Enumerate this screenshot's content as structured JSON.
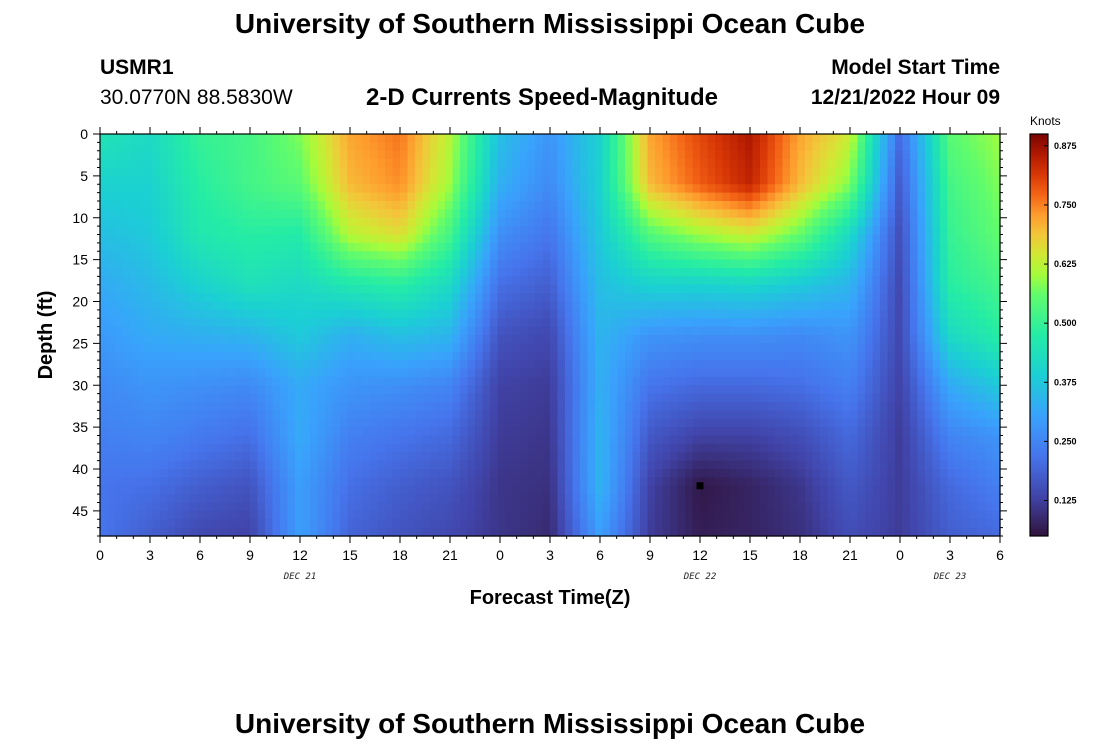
{
  "header": {
    "title": "University of Southern Mississippi Ocean Cube",
    "station_id": "USMR1",
    "coords": "30.0770N  88.5830W",
    "plot_title": "2-D Currents Speed-Magnitude",
    "model_start_label": "Model Start Time",
    "model_start_value": "12/21/2022 Hour 09"
  },
  "footer": {
    "title": "University of Southern Mississippi Ocean Cube"
  },
  "chart_data": {
    "type": "heatmap",
    "xlabel": "Forecast Time(Z)",
    "ylabel": "Depth (ft)",
    "x_tick_labels": [
      "0",
      "3",
      "6",
      "9",
      "12",
      "15",
      "18",
      "21",
      "0",
      "3",
      "6",
      "9",
      "12",
      "15",
      "18",
      "21",
      "0",
      "3",
      "6"
    ],
    "date_labels": [
      {
        "text": "DEC 21",
        "x_hour": 12
      },
      {
        "text": "DEC 22",
        "x_hour": 36
      },
      {
        "text": "DEC 23",
        "x_hour": 51
      }
    ],
    "xlim_hours": [
      0,
      54
    ],
    "y_ticks": [
      0,
      5,
      10,
      15,
      20,
      25,
      30,
      35,
      40,
      45
    ],
    "ylim_ft": [
      0,
      48
    ],
    "y_inverted": true,
    "colorbar": {
      "unit": "Knots",
      "ticks": [
        "0.125",
        "0.250",
        "0.375",
        "0.500",
        "0.625",
        "0.750",
        "0.875"
      ],
      "range": [
        0.05,
        0.9
      ],
      "colormap": "turbo"
    },
    "depths_ft": [
      0,
      6,
      12,
      18,
      24,
      30,
      36,
      42,
      48
    ],
    "time_hours": [
      0,
      3,
      6,
      9,
      12,
      15,
      18,
      21,
      24,
      27,
      30,
      33,
      36,
      39,
      42,
      45,
      48,
      51,
      54
    ],
    "speed_knots": [
      [
        0.45,
        0.42,
        0.5,
        0.52,
        0.58,
        0.72,
        0.76,
        0.62,
        0.36,
        0.28,
        0.4,
        0.72,
        0.8,
        0.86,
        0.72,
        0.64,
        0.2,
        0.55,
        0.6
      ],
      [
        0.4,
        0.4,
        0.48,
        0.52,
        0.55,
        0.7,
        0.74,
        0.6,
        0.33,
        0.26,
        0.4,
        0.7,
        0.78,
        0.84,
        0.7,
        0.58,
        0.17,
        0.52,
        0.58
      ],
      [
        0.36,
        0.38,
        0.46,
        0.48,
        0.47,
        0.62,
        0.66,
        0.52,
        0.27,
        0.22,
        0.38,
        0.54,
        0.6,
        0.64,
        0.56,
        0.42,
        0.15,
        0.5,
        0.56
      ],
      [
        0.32,
        0.35,
        0.4,
        0.44,
        0.42,
        0.46,
        0.48,
        0.42,
        0.21,
        0.18,
        0.36,
        0.4,
        0.4,
        0.41,
        0.38,
        0.34,
        0.14,
        0.48,
        0.52
      ],
      [
        0.29,
        0.32,
        0.33,
        0.34,
        0.38,
        0.33,
        0.36,
        0.34,
        0.16,
        0.14,
        0.34,
        0.28,
        0.27,
        0.27,
        0.26,
        0.28,
        0.14,
        0.42,
        0.48
      ],
      [
        0.26,
        0.28,
        0.27,
        0.26,
        0.32,
        0.28,
        0.27,
        0.25,
        0.13,
        0.12,
        0.33,
        0.22,
        0.2,
        0.2,
        0.21,
        0.24,
        0.13,
        0.32,
        0.38
      ],
      [
        0.24,
        0.25,
        0.23,
        0.21,
        0.32,
        0.24,
        0.22,
        0.2,
        0.12,
        0.11,
        0.34,
        0.17,
        0.13,
        0.13,
        0.15,
        0.2,
        0.12,
        0.25,
        0.28
      ],
      [
        0.22,
        0.21,
        0.18,
        0.16,
        0.3,
        0.21,
        0.18,
        0.16,
        0.11,
        0.1,
        0.34,
        0.13,
        0.06,
        0.08,
        0.11,
        0.17,
        0.12,
        0.2,
        0.24
      ],
      [
        0.22,
        0.18,
        0.14,
        0.13,
        0.3,
        0.19,
        0.16,
        0.14,
        0.11,
        0.09,
        0.3,
        0.12,
        0.07,
        0.08,
        0.1,
        0.15,
        0.12,
        0.18,
        0.2
      ]
    ]
  }
}
